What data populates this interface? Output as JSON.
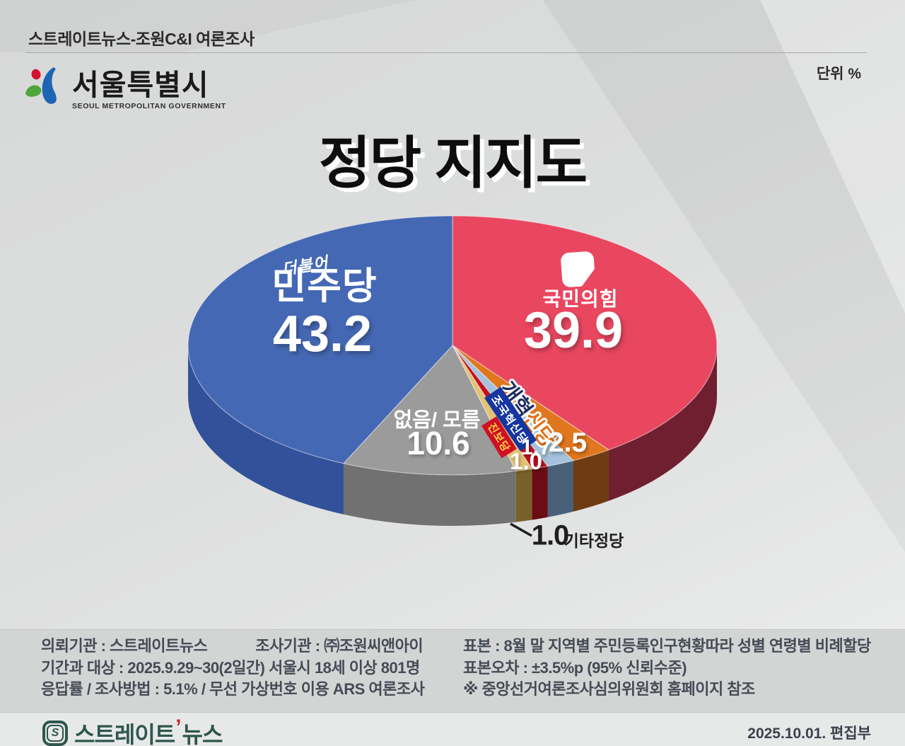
{
  "header": {
    "survey_title": "스트레이트뉴스-조원C&I 여론조사",
    "unit_label": "단위 %"
  },
  "seoul_logo": {
    "korean": "서울특별시",
    "english": "SEOUL METROPOLITAN GOVERNMENT"
  },
  "title": "정당 지지도",
  "chart_data": {
    "type": "pie",
    "title": "정당 지지도",
    "unit": "%",
    "style": "3d-pie",
    "start_angle_deg": 0,
    "direction": "clockwise",
    "slices": [
      {
        "label": "국민의힘",
        "value": 39.9,
        "color": "#e8475f",
        "side_color": "#6f1f30"
      },
      {
        "label": "개혁신당",
        "value": 2.5,
        "color": "#e0771e",
        "side_color": "#6e3b12"
      },
      {
        "label": "조국혁신당",
        "value": 1.7,
        "color": "#a4c2dc",
        "side_color": "#486078"
      },
      {
        "label": "진보당",
        "value": 1.0,
        "color": "#c11120",
        "side_color": "#6b0d15"
      },
      {
        "label": "기타정당",
        "value": 1.0,
        "color": "#e3c276",
        "side_color": "#776128"
      },
      {
        "label": "없음/ 모름",
        "value": 10.6,
        "color": "#9b9b9b",
        "side_color": "#717171"
      },
      {
        "label": "더불어민주당",
        "value": 43.2,
        "color": "#4568b4",
        "side_color": "#33519a"
      }
    ]
  },
  "pie_labels": {
    "minjoo": {
      "script": "더불어",
      "name": "민주당",
      "value": "43.2"
    },
    "ppp": {
      "name": "국민의힘",
      "value": "39.9"
    },
    "none": {
      "name": "없음/ 모름",
      "value": "10.6"
    },
    "reform": {
      "name_part1": "개혁",
      "name_part2": "신당",
      "value": "2.5"
    },
    "rebuild": {
      "name": "조국혁신당",
      "value": "1.7"
    },
    "jinbo": {
      "name": "진보당",
      "value": "1.0"
    },
    "etc": {
      "value": "1.0",
      "name": "기타정당"
    }
  },
  "survey_info": {
    "client": "의뢰기관 : 스트레이트뉴스",
    "agency": "조사기관 : ㈜조원씨앤아이",
    "period": "기간과 대상 : 2025.9.29~30(2일간) 서울시  18세 이상 801명",
    "response": "응답률 / 조사방법 : 5.1% / 무선 가상번호 이용 ARS 여론조사",
    "sample": "표본 : 8월 말 지역별 주민등록인구현황따라 성별 연령별 비례할당",
    "margin": "표본오차 : ±3.5%p (95% 신뢰수준)",
    "reference": "※ 중앙선거여론조사심의위원회 홈페이지 참조"
  },
  "footer": {
    "brand_main": "스트레이트",
    "brand_sub": "뉴스",
    "badge_letter": "S",
    "date_line": "2025.10.01. 편집부"
  }
}
